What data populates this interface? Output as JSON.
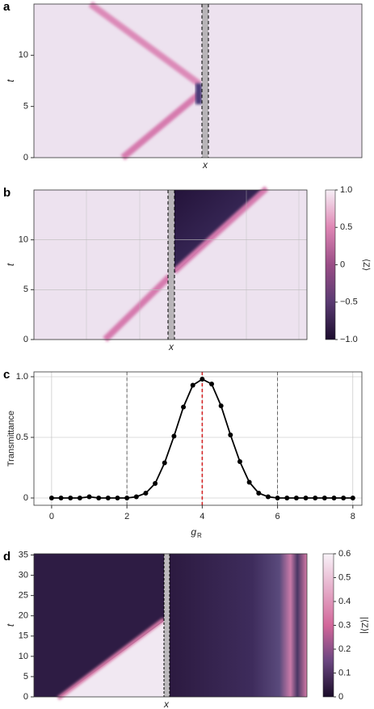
{
  "chart_data": [
    {
      "type": "heatmap",
      "panel": "a",
      "xlabel": "x",
      "ylabel": "t",
      "ylim": [
        0,
        15
      ],
      "yticks": [
        0,
        5,
        10
      ]
    },
    {
      "type": "heatmap",
      "panel": "b",
      "xlabel": "x",
      "ylabel": "t",
      "ylim": [
        0,
        15
      ],
      "yticks": [
        0,
        5,
        10
      ],
      "grid": true,
      "colorbar_label": "⟨Z⟩",
      "clim": [
        -1,
        1
      ],
      "colorbar_ticks": [
        {
          "value": 1,
          "label": "1.0"
        },
        0.5,
        0,
        {
          "value": -0.5,
          "label": "−0.5"
        },
        {
          "value": -1,
          "label": "−1.0"
        }
      ]
    },
    {
      "type": "line",
      "panel": "c",
      "xlabel": "g",
      "xlabel_subscript": "R",
      "ylabel": "Transmittance",
      "xlim": [
        -0.47,
        8.24
      ],
      "ylim": [
        -0.06,
        1.04
      ],
      "xticks": [
        0,
        2,
        4,
        6,
        8
      ],
      "yticks": [
        0,
        0.5,
        {
          "value": 1,
          "label": "1.0"
        }
      ],
      "grid": true,
      "reference_lines": [
        {
          "x": 2,
          "color": "#555555"
        },
        {
          "x": 4,
          "color": "#d62728"
        },
        {
          "x": 6,
          "color": "#555555"
        }
      ],
      "x": [
        0,
        0.25,
        0.5,
        0.75,
        1,
        1.25,
        1.5,
        1.75,
        2,
        2.25,
        2.5,
        2.75,
        3,
        3.25,
        3.5,
        3.75,
        4,
        4.25,
        4.5,
        4.75,
        5,
        5.25,
        5.5,
        5.75,
        6,
        6.25,
        6.5,
        6.75,
        7,
        7.25,
        7.5,
        7.75,
        8
      ],
      "values": [
        0,
        0,
        0,
        0,
        0.01,
        0,
        0,
        0,
        0,
        0.01,
        0.04,
        0.12,
        0.29,
        0.51,
        0.75,
        0.93,
        0.98,
        0.94,
        0.76,
        0.52,
        0.3,
        0.13,
        0.04,
        0.01,
        0,
        0,
        0,
        0,
        0,
        0,
        0,
        0,
        0
      ],
      "color": "#000000"
    },
    {
      "type": "heatmap",
      "panel": "d",
      "xlabel": "x",
      "ylabel": "t",
      "ylim": [
        0,
        35.3
      ],
      "yticks": [
        0,
        5,
        10,
        15,
        20,
        25,
        30,
        35
      ],
      "colorbar_label": "|⟨Z⟩|",
      "clim": [
        0,
        0.6
      ],
      "colorbar_ticks": [
        0,
        0.1,
        0.2,
        0.3,
        0.4,
        0.5,
        0.6
      ]
    }
  ]
}
